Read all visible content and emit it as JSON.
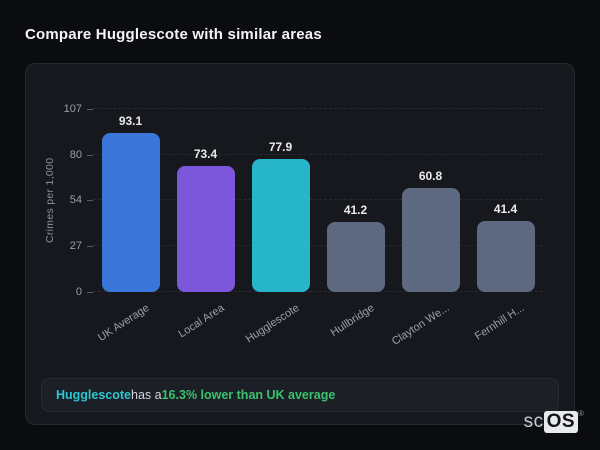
{
  "page": {
    "title": "Compare Hugglescote with similar areas"
  },
  "chart_data": {
    "type": "bar",
    "categories": [
      "UK Average",
      "Local Area",
      "Hugglescote",
      "Hullbridge",
      "Clayton We...",
      "Fernhill H..."
    ],
    "values": [
      93.1,
      73.4,
      77.9,
      41.2,
      60.8,
      41.4
    ],
    "value_labels": [
      "93.1",
      "73.4",
      "77.9",
      "41.2",
      "60.8",
      "41.4"
    ],
    "bar_colors": [
      "#3b76db",
      "#7c57db",
      "#27b6c9",
      "#5d6980",
      "#5d6980",
      "#5d6980"
    ],
    "title": "",
    "xlabel": "",
    "ylabel": "Crimes per 1,000",
    "ylim": [
      0,
      107
    ],
    "yticks": [
      0,
      27,
      54,
      80,
      107
    ],
    "grid": "dashed-horizontal",
    "legend": "none",
    "x_label_rotation_deg": -33
  },
  "note": {
    "subject": "Hugglescote",
    "connector": " has a ",
    "highlight": "16.3% lower than UK average",
    "subject_color": "#2cc7d0",
    "highlight_color": "#39c36e"
  },
  "logo": {
    "prefix": "sc",
    "suffix": "OS",
    "registered": "®"
  },
  "colors": {
    "page_background": "#0b0c10",
    "card_background": "#16181e",
    "card_border": "#262930",
    "note_background": "#1c1f26",
    "value_label": "#e9eaec",
    "axis_text": "#9aa0a8",
    "gridline": "#272a31"
  }
}
